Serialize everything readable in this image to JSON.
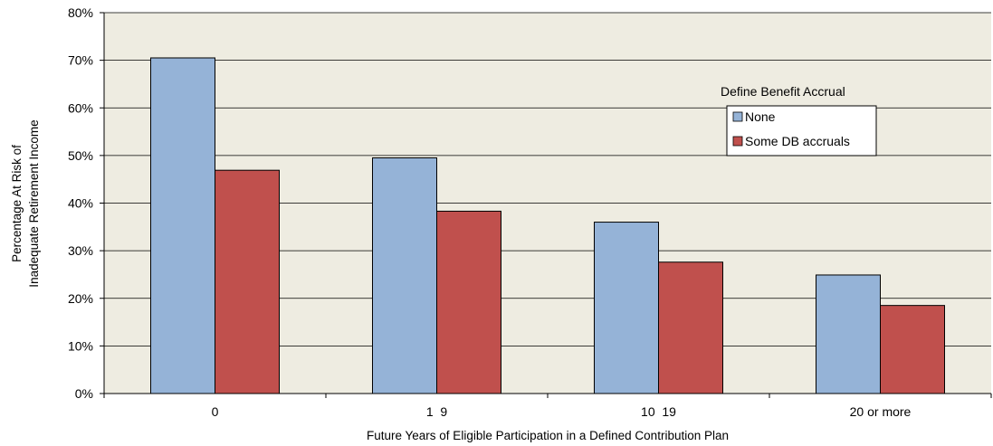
{
  "chart_data": {
    "type": "bar",
    "categories": [
      "0",
      "1  9",
      "10  19",
      "20 or more"
    ],
    "series": [
      {
        "name": "None",
        "values": [
          70.5,
          49.5,
          36.0,
          24.9
        ],
        "color": "#95b3d7"
      },
      {
        "name": "Some DB accruals",
        "values": [
          46.9,
          38.3,
          27.6,
          18.5
        ],
        "color": "#c0504d"
      }
    ],
    "title": "",
    "xlabel": "Future Years of Eligible Participation in a Defined Contribution Plan",
    "ylabel_lines": [
      "Percentage At Risk of",
      "Inadequate Retirement Income"
    ],
    "ylim": [
      0,
      80
    ],
    "yticks": [
      0,
      10,
      20,
      30,
      40,
      50,
      60,
      70,
      80
    ],
    "ytick_suffix": "%",
    "grid": true,
    "legend": {
      "title": "Define Benefit Accrual",
      "placement": "top-right"
    },
    "plot_background": "#eeece1"
  }
}
